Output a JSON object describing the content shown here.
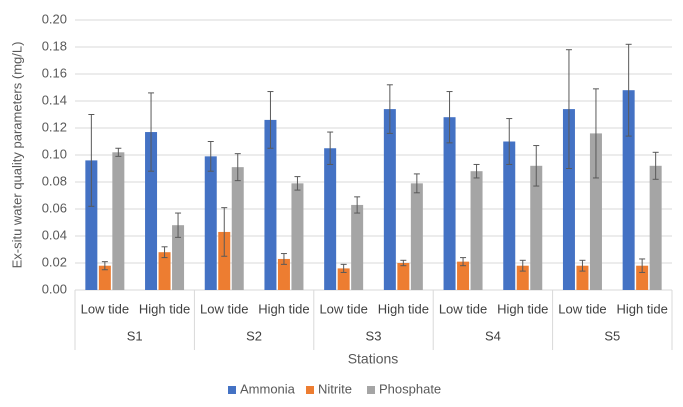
{
  "chart_data": {
    "type": "bar",
    "y_label": "Ex-situ water quality parameters  (mg/L)",
    "x_label": "Stations",
    "groups": [
      {
        "label": "S1",
        "categories": [
          "Low tide",
          "High tide"
        ]
      },
      {
        "label": "S2",
        "categories": [
          "Low tide",
          "High tide"
        ]
      },
      {
        "label": "S3",
        "categories": [
          "Low tide",
          "High tide"
        ]
      },
      {
        "label": "S4",
        "categories": [
          "Low tide",
          "High tide"
        ]
      },
      {
        "label": "S5",
        "categories": [
          "Low tide",
          "High tide"
        ]
      }
    ],
    "series": [
      {
        "name": "Ammonia",
        "color": "#4472c4",
        "values": [
          0.096,
          0.117,
          0.099,
          0.126,
          0.105,
          0.134,
          0.128,
          0.11,
          0.134,
          0.148
        ],
        "errors": [
          0.034,
          0.029,
          0.011,
          0.021,
          0.012,
          0.018,
          0.019,
          0.017,
          0.044,
          0.034
        ]
      },
      {
        "name": "Nitrite",
        "color": "#ed7d31",
        "values": [
          0.018,
          0.028,
          0.043,
          0.023,
          0.016,
          0.02,
          0.021,
          0.018,
          0.018,
          0.018
        ],
        "errors": [
          0.003,
          0.004,
          0.018,
          0.004,
          0.003,
          0.002,
          0.003,
          0.004,
          0.004,
          0.005
        ]
      },
      {
        "name": "Phosphate",
        "color": "#a5a5a5",
        "values": [
          0.102,
          0.048,
          0.091,
          0.079,
          0.063,
          0.079,
          0.088,
          0.092,
          0.116,
          0.092
        ],
        "errors": [
          0.003,
          0.009,
          0.01,
          0.005,
          0.006,
          0.007,
          0.005,
          0.015,
          0.033,
          0.01
        ]
      }
    ],
    "ylim": [
      0,
      0.2
    ],
    "yticks": [
      {
        "value": 0,
        "label": "0.00"
      },
      {
        "value": 0.02,
        "label": "0.02"
      },
      {
        "value": 0.04,
        "label": "0.04"
      },
      {
        "value": 0.06,
        "label": "0.06"
      },
      {
        "value": 0.08,
        "label": "0.08"
      },
      {
        "value": 0.1,
        "label": "0.10"
      },
      {
        "value": 0.12,
        "label": "0.12"
      },
      {
        "value": 0.14,
        "label": "0.14"
      },
      {
        "value": 0.16,
        "label": "0.16"
      },
      {
        "value": 0.18,
        "label": "0.18"
      },
      {
        "value": 0.2,
        "label": "0.20"
      }
    ],
    "grid": true,
    "legend": "bottom"
  }
}
